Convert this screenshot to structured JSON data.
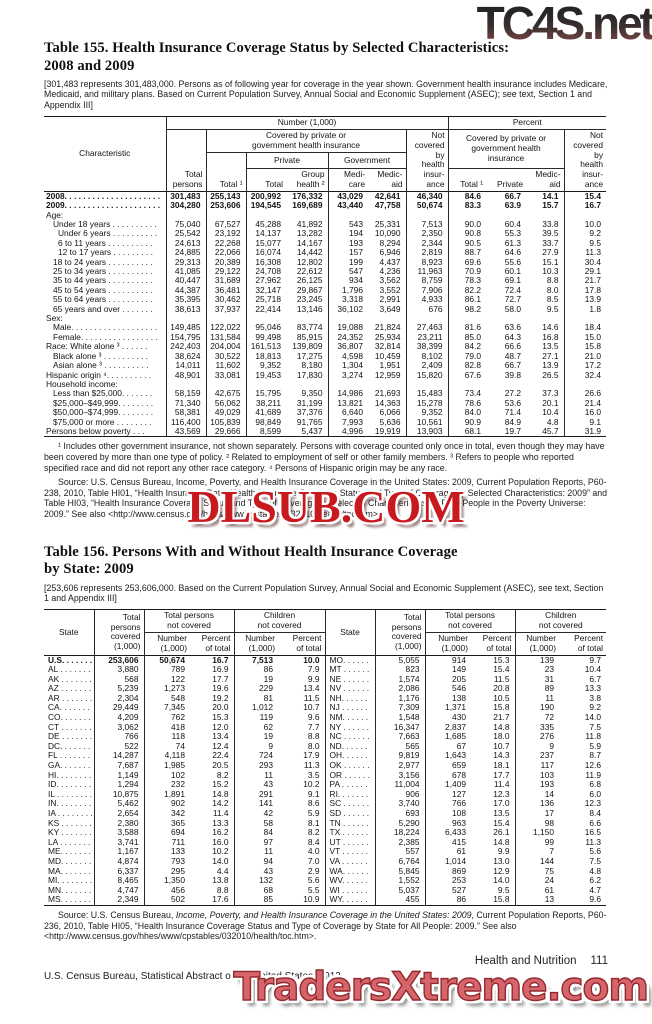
{
  "watermarks": {
    "top": "TC4S.net",
    "middle": "DLSUB.COM",
    "bottom": "TradersXtreme.com",
    "red": "#c8191f",
    "pink": "#d5646b"
  },
  "table155": {
    "title_line1": "Table 155. Health Insurance Coverage Status by Selected Characteristics:",
    "title_line2": "2008 and 2009",
    "bracket_note": "[301,483 represents 301,483,000. Persons as of following year for coverage in the year shown. Government health insurance includes Medicare, Medicaid, and military plans. Based on Current Population Survey, Annual Social and Economic Supplement (ASEC); see text, Section 1 and Appendix III]",
    "header": {
      "characteristic": "Characteristic",
      "number_group": "Number (1,000)",
      "percent_group": "Percent",
      "total_persons": "Total\npersons",
      "covered_number": "Covered by private or\ngovernment health insurance",
      "not_covered": "Not\ncovered\nby\nhealth\ninsur-\nance",
      "total1": "Total ¹",
      "private_group": "Private",
      "government_group": "Government",
      "private_total": "Total",
      "group_health": "Group\nhealth ²",
      "medicare": "Medi-\ncare",
      "medicaid": "Medic-\naid",
      "covered_percent": "Covered by private or\ngovernment health\ninsurance",
      "pct_total1": "Total ¹",
      "pct_private": "Private",
      "pct_medicaid": "Medic-\naid"
    },
    "rows": [
      {
        "label": "2008. . . . . . . . . . . . . . . . . . . . .",
        "i": 0,
        "b": 1,
        "v": [
          "301,483",
          "255,143",
          "200,992",
          "176,332",
          "43,029",
          "42,641",
          "46,340",
          "84.6",
          "66.7",
          "14.1",
          "15.4"
        ]
      },
      {
        "label": "2009. . . . . . . . . . . . . . . . . . . . .",
        "i": 0,
        "b": 1,
        "v": [
          "304,280",
          "253,606",
          "194,545",
          "169,689",
          "43,440",
          "47,758",
          "50,674",
          "83.3",
          "63.9",
          "15.7",
          "16.7"
        ]
      },
      {
        "label": "Age:",
        "i": 0,
        "b": 0,
        "v": []
      },
      {
        "label": "Under 18 years . . . . . . . . . .",
        "i": 1,
        "b": 0,
        "v": [
          "75,040",
          "67,527",
          "45,288",
          "41,892",
          "543",
          "25,331",
          "7,513",
          "90.0",
          "60.4",
          "33.8",
          "10.0"
        ]
      },
      {
        "label": "Under 6 years . . . . . . . . . .",
        "i": 2,
        "b": 0,
        "v": [
          "25,542",
          "23,192",
          "14,137",
          "13,282",
          "194",
          "10,090",
          "2,350",
          "90.8",
          "55.3",
          "39.5",
          "9.2"
        ]
      },
      {
        "label": "6 to 11 years . . . . . . . . . .",
        "i": 2,
        "b": 0,
        "v": [
          "24,613",
          "22,268",
          "15,077",
          "14,167",
          "193",
          "8,294",
          "2,344",
          "90.5",
          "61.3",
          "33.7",
          "9.5"
        ]
      },
      {
        "label": "12 to 17 years . . . . . . . . .",
        "i": 2,
        "b": 0,
        "v": [
          "24,885",
          "22,066",
          "16,074",
          "14,442",
          "157",
          "6,946",
          "2,819",
          "88.7",
          "64.6",
          "27.9",
          "11.3"
        ]
      },
      {
        "label": "18 to 24 years . . . . . . . . . .",
        "i": 1,
        "b": 0,
        "v": [
          "29,313",
          "20,389",
          "16,308",
          "12,802",
          "199",
          "4,437",
          "8,923",
          "69.6",
          "55.6",
          "15.1",
          "30.4"
        ]
      },
      {
        "label": "25 to 34 years . . . . . . . . . .",
        "i": 1,
        "b": 0,
        "v": [
          "41,085",
          "29,122",
          "24,708",
          "22,612",
          "547",
          "4,236",
          "11,963",
          "70.9",
          "60.1",
          "10.3",
          "29.1"
        ]
      },
      {
        "label": "35 to 44 years . . . . . . . . . .",
        "i": 1,
        "b": 0,
        "v": [
          "40,447",
          "31,689",
          "27,962",
          "26,125",
          "934",
          "3,562",
          "8,759",
          "78.3",
          "69.1",
          "8.8",
          "21.7"
        ]
      },
      {
        "label": "45 to 54 years . . . . . . . . . .",
        "i": 1,
        "b": 0,
        "v": [
          "44,387",
          "36,481",
          "32,147",
          "29,867",
          "1,796",
          "3,552",
          "7,906",
          "82.2",
          "72.4",
          "8.0",
          "17.8"
        ]
      },
      {
        "label": "55 to 64 years . . . . . . . . . .",
        "i": 1,
        "b": 0,
        "v": [
          "35,395",
          "30,462",
          "25,718",
          "23,245",
          "3,318",
          "2,991",
          "4,933",
          "86.1",
          "72.7",
          "8.5",
          "13.9"
        ]
      },
      {
        "label": "65 years and over . . . . . . .",
        "i": 1,
        "b": 0,
        "v": [
          "38,613",
          "37,937",
          "22,414",
          "13,146",
          "36,102",
          "3,649",
          "676",
          "98.2",
          "58.0",
          "9.5",
          "1.8"
        ]
      },
      {
        "label": "Sex:",
        "i": 0,
        "b": 0,
        "v": []
      },
      {
        "label": "Male. . . . . . . . . . . . . . . . . . .",
        "i": 1,
        "b": 0,
        "v": [
          "149,485",
          "122,022",
          "95,046",
          "83,774",
          "19,088",
          "21,824",
          "27,463",
          "81.6",
          "63.6",
          "14.6",
          "18.4"
        ]
      },
      {
        "label": "Female. . . . . . . . . . . . . . . . .",
        "i": 1,
        "b": 0,
        "v": [
          "154,795",
          "131,584",
          "99,498",
          "85,915",
          "24,352",
          "25,934",
          "23,211",
          "85.0",
          "64.3",
          "16.8",
          "15.0"
        ]
      },
      {
        "label": "Race: White alone ³ . . . . . .",
        "i": 0,
        "b": 0,
        "v": [
          "242,403",
          "204,004",
          "161,513",
          "139,809",
          "36,807",
          "32,814",
          "38,399",
          "84.2",
          "66.6",
          "13.5",
          "15.8"
        ]
      },
      {
        "label": "Black alone ³ . . . . . . . . . .",
        "i": 1,
        "b": 0,
        "v": [
          "38,624",
          "30,522",
          "18,813",
          "17,275",
          "4,598",
          "10,459",
          "8,102",
          "79.0",
          "48.7",
          "27.1",
          "21.0"
        ]
      },
      {
        "label": "Asian alone ³ . . . . . . . . . .",
        "i": 1,
        "b": 0,
        "v": [
          "14,011",
          "11,602",
          "9,352",
          "8,180",
          "1,304",
          "1,951",
          "2,409",
          "82.8",
          "66.7",
          "13.9",
          "17.2"
        ]
      },
      {
        "label": "Hispanic origin ⁴. . . . . . . . . .",
        "i": 0,
        "b": 0,
        "v": [
          "48,901",
          "33,081",
          "19,453",
          "17,830",
          "3,274",
          "12,959",
          "15,820",
          "67.6",
          "39.8",
          "26.5",
          "32.4"
        ]
      },
      {
        "label": "Household income:",
        "i": 0,
        "b": 0,
        "v": []
      },
      {
        "label": "Less than $25,000. . . . . . .",
        "i": 1,
        "b": 0,
        "v": [
          "58,159",
          "42,675",
          "15,795",
          "9,350",
          "14,986",
          "21,693",
          "15,483",
          "73.4",
          "27.2",
          "37.3",
          "26.6"
        ]
      },
      {
        "label": "$25,000–$49,999. . . . . . . .",
        "i": 1,
        "b": 0,
        "v": [
          "71,340",
          "56,062",
          "38,211",
          "31,199",
          "13,821",
          "14,363",
          "15,278",
          "78.6",
          "53.6",
          "20.1",
          "21.4"
        ]
      },
      {
        "label": "$50,000–$74,999. . . . . . . .",
        "i": 1,
        "b": 0,
        "v": [
          "58,381",
          "49,029",
          "41,689",
          "37,376",
          "6,640",
          "6,066",
          "9,352",
          "84.0",
          "71.4",
          "10.4",
          "16.0"
        ]
      },
      {
        "label": "$75,000 or more . . . . . . . .",
        "i": 1,
        "b": 0,
        "v": [
          "116,400",
          "105,839",
          "98,849",
          "91,765",
          "7,993",
          "5,636",
          "10,561",
          "90.9",
          "84.9",
          "4.8",
          "9.1"
        ]
      },
      {
        "label": "Persons below poverty . . .",
        "i": 0,
        "b": 0,
        "v": [
          "43,569",
          "29,666",
          "8,599",
          "5,437",
          "4,996",
          "19,919",
          "13,903",
          "68.1",
          "19.7",
          "45.7",
          "31.9"
        ]
      }
    ],
    "footnote": "¹ Includes other government insurance, not shown separately. Persons with coverage counted only once in total, even though they may have been covered by more than one type of policy. ² Related to employment of self or other family members. ³ Refers to people who reported specified race and did not report any other race category. ⁴ Persons of Hispanic origin may be any race.",
    "source": "Source: U.S. Census Bureau, Income, Poverty, and Health Insurance Coverage in the United States: 2009, Current Population Reports, P60-238, 2010, Table HI01, “Health Insurance Data, Health Insurance Coverage Status and Type of Coverage by Selected Characteristics: 2009” and Table HI03, “Health Insurance Coverage Status and Type of Coverage by Selected Characteristics for Poor People in the Poverty Universe: 2009.” See also <http://www.census.gov/hhes/www/cpstables/032010/health/toc.htm>."
  },
  "table156": {
    "title_line1": "Table 156. Persons With and Without Health Insurance Coverage",
    "title_line2": "by State: 2009",
    "bracket_note": "[253,606 represents 253,606,000. Based on the Current Population Survey, Annual Social and Economic Supplement (ASEC), see text, Section 1 and Appendix III]",
    "header": {
      "state": "State",
      "covered": "Total\npersons\ncovered\n(1,000)",
      "not_covered_group": "Total persons\nnot covered",
      "children_group": "Children\nnot covered",
      "number": "Number\n(1,000)",
      "percent": "Percent\nof total"
    },
    "rows": [
      {
        "l": "U.S. . . . . . .",
        "lb": 1,
        "lv": [
          "253,606",
          "50,674",
          "16.7",
          "7,513",
          "10.0"
        ],
        "r": "MO. . . . . .",
        "rv": [
          "5,055",
          "914",
          "15.3",
          "139",
          "9.7"
        ]
      },
      {
        "l": "AL . . . . . . .",
        "lb": 0,
        "lv": [
          "3,880",
          "789",
          "16.9",
          "86",
          "7.9"
        ],
        "r": "MT . . . . . .",
        "rv": [
          "823",
          "149",
          "15.4",
          "23",
          "10.4"
        ]
      },
      {
        "l": "AK . . . . . . .",
        "lb": 0,
        "lv": [
          "568",
          "122",
          "17.7",
          "19",
          "9.9"
        ],
        "r": "NE . . . . . .",
        "rv": [
          "1,574",
          "205",
          "11.5",
          "31",
          "6.7"
        ]
      },
      {
        "l": "AZ . . . . . . .",
        "lb": 0,
        "lv": [
          "5,239",
          "1,273",
          "19.6",
          "229",
          "13.4"
        ],
        "r": "NV . . . . . .",
        "rv": [
          "2,086",
          "546",
          "20.8",
          "89",
          "13.3"
        ]
      },
      {
        "l": "AR . . . . . . .",
        "lb": 0,
        "lv": [
          "2,304",
          "548",
          "19.2",
          "81",
          "11.5"
        ],
        "r": "NH. . . . . .",
        "rv": [
          "1,176",
          "138",
          "10.5",
          "11",
          "3.8"
        ]
      },
      {
        "l": "CA. . . . . . .",
        "lb": 0,
        "lv": [
          "29,449",
          "7,345",
          "20.0",
          "1,012",
          "10.7"
        ],
        "r": "NJ . . . . . .",
        "rv": [
          "7,309",
          "1,371",
          "15.8",
          "190",
          "9.2"
        ]
      },
      {
        "l": "CO. . . . . . .",
        "lb": 0,
        "lv": [
          "4,209",
          "762",
          "15.3",
          "119",
          "9.6"
        ],
        "r": "NM. . . . . .",
        "rv": [
          "1,548",
          "430",
          "21.7",
          "72",
          "14.0"
        ]
      },
      {
        "l": "CT . . . . . . .",
        "lb": 0,
        "lv": [
          "3,062",
          "418",
          "12.0",
          "62",
          "7.7"
        ],
        "r": "NY . . . . . .",
        "rv": [
          "16,347",
          "2,837",
          "14.8",
          "335",
          "7.5"
        ]
      },
      {
        "l": "DE . . . . . . .",
        "lb": 0,
        "lv": [
          "766",
          "118",
          "13.4",
          "19",
          "8.8"
        ],
        "r": "NC . . . . . .",
        "rv": [
          "7,663",
          "1,685",
          "18.0",
          "276",
          "11.8"
        ]
      },
      {
        "l": "DC. . . . . . .",
        "lb": 0,
        "lv": [
          "522",
          "74",
          "12.4",
          "9",
          "8.0"
        ],
        "r": "ND. . . . . .",
        "rv": [
          "565",
          "67",
          "10.7",
          "9",
          "5.9"
        ]
      },
      {
        "l": "FL . . . . . . .",
        "lb": 0,
        "lv": [
          "14,287",
          "4,118",
          "22.4",
          "724",
          "17.9"
        ],
        "r": "OH. . . . . .",
        "rv": [
          "9,819",
          "1,643",
          "14.3",
          "237",
          "8.7"
        ]
      },
      {
        "l": "GA. . . . . . .",
        "lb": 0,
        "lv": [
          "7,687",
          "1,985",
          "20.5",
          "293",
          "11.3"
        ],
        "r": "OK . . . . . .",
        "rv": [
          "2,977",
          "659",
          "18.1",
          "117",
          "12.6"
        ]
      },
      {
        "l": "HI. . . . . . . .",
        "lb": 0,
        "lv": [
          "1,149",
          "102",
          "8.2",
          "11",
          "3.5"
        ],
        "r": "OR . . . . . .",
        "rv": [
          "3,156",
          "678",
          "17.7",
          "103",
          "11.9"
        ]
      },
      {
        "l": "ID. . . . . . . .",
        "lb": 0,
        "lv": [
          "1,294",
          "232",
          "15.2",
          "43",
          "10.2"
        ],
        "r": "PA . . . . . .",
        "rv": [
          "11,004",
          "1,409",
          "11.4",
          "193",
          "6.8"
        ]
      },
      {
        "l": "IL . . . . . . . .",
        "lb": 0,
        "lv": [
          "10,875",
          "1,891",
          "14.8",
          "291",
          "9.1"
        ],
        "r": "RI. . . . . . .",
        "rv": [
          "906",
          "127",
          "12.3",
          "14",
          "6.0"
        ]
      },
      {
        "l": "IN. . . . . . . .",
        "lb": 0,
        "lv": [
          "5,462",
          "902",
          "14.2",
          "141",
          "8.6"
        ],
        "r": "SC . . . . . .",
        "rv": [
          "3,740",
          "766",
          "17.0",
          "136",
          "12.3"
        ]
      },
      {
        "l": "IA . . . . . . . .",
        "lb": 0,
        "lv": [
          "2,654",
          "342",
          "11.4",
          "42",
          "5.9"
        ],
        "r": "SD . . . . . .",
        "rv": [
          "693",
          "108",
          "13.5",
          "17",
          "8.4"
        ]
      },
      {
        "l": "KS . . . . . . .",
        "lb": 0,
        "lv": [
          "2,380",
          "365",
          "13.3",
          "58",
          "8.1"
        ],
        "r": "TN . . . . . .",
        "rv": [
          "5,290",
          "963",
          "15.4",
          "98",
          "6.6"
        ]
      },
      {
        "l": "KY . . . . . . .",
        "lb": 0,
        "lv": [
          "3,588",
          "694",
          "16.2",
          "84",
          "8.2"
        ],
        "r": "TX . . . . . .",
        "rv": [
          "18,224",
          "6,433",
          "26.1",
          "1,150",
          "16.5"
        ]
      },
      {
        "l": "LA . . . . . . .",
        "lb": 0,
        "lv": [
          "3,741",
          "711",
          "16.0",
          "97",
          "8.4"
        ],
        "r": "UT . . . . . .",
        "rv": [
          "2,385",
          "415",
          "14.8",
          "99",
          "11.3"
        ]
      },
      {
        "l": "ME. . . . . . .",
        "lb": 0,
        "lv": [
          "1,167",
          "133",
          "10.2",
          "11",
          "4.0"
        ],
        "r": "VT . . . . . .",
        "rv": [
          "557",
          "61",
          "9.9",
          "7",
          "5.6"
        ]
      },
      {
        "l": "MD. . . . . . .",
        "lb": 0,
        "lv": [
          "4,874",
          "793",
          "14.0",
          "94",
          "7.0"
        ],
        "r": "VA . . . . . .",
        "rv": [
          "6,764",
          "1,014",
          "13.0",
          "144",
          "7.5"
        ]
      },
      {
        "l": "MA. . . . . . .",
        "lb": 0,
        "lv": [
          "6,337",
          "295",
          "4.4",
          "43",
          "2.9"
        ],
        "r": "WA. . . . . .",
        "rv": [
          "5,845",
          "869",
          "12.9",
          "75",
          "4.8"
        ]
      },
      {
        "l": "MI. . . . . . . .",
        "lb": 0,
        "lv": [
          "8,465",
          "1,350",
          "13.8",
          "132",
          "5.6"
        ],
        "r": "WV. . . . . .",
        "rv": [
          "1,552",
          "253",
          "14.0",
          "24",
          "6.2"
        ]
      },
      {
        "l": "MN. . . . . . .",
        "lb": 0,
        "lv": [
          "4,747",
          "456",
          "8.8",
          "68",
          "5.5"
        ],
        "r": "WI . . . . . .",
        "rv": [
          "5,037",
          "527",
          "9.5",
          "61",
          "4.7"
        ]
      },
      {
        "l": "MS. . . . . . .",
        "lb": 0,
        "lv": [
          "2,349",
          "502",
          "17.6",
          "85",
          "10.9"
        ],
        "r": "WY. . . . . .",
        "rv": [
          "455",
          "86",
          "15.8",
          "13",
          "9.6"
        ]
      }
    ],
    "source_prefix": "Source: U.S. Census Bureau, ",
    "source_italic": "Income, Poverty, and Health Insurance Coverage in the United States: 2009",
    "source_suffix": ", Current Population Reports, P60-236, 2010, Table HI05, “Health Insurance Coverage Status and Type of Coverage by State for All People: 2009.” See also <http://www.census.gov/hhes/www/cpstables/032010/health/toc.htm>."
  },
  "footer": {
    "section_label": "Health and Nutrition",
    "page_number": "111",
    "census_line": "U.S. Census Bureau, Statistical Abstract of the United States: 2012"
  }
}
